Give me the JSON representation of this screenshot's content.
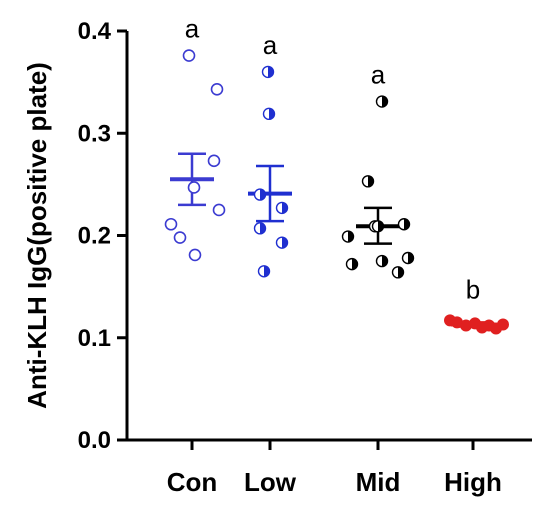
{
  "chart_data": {
    "type": "scatter",
    "ylabel": "Anti-KLH IgG(positive plate)",
    "ylim": [
      0.0,
      0.4
    ],
    "yticks": [
      0.0,
      0.1,
      0.2,
      0.3,
      0.4
    ],
    "ytick_labels": [
      "0.0",
      "0.1",
      "0.2",
      "0.3",
      "0.4"
    ],
    "categories": [
      "Con",
      "Low",
      "Mid",
      "High"
    ],
    "grid": false,
    "groups": [
      {
        "category": "Con",
        "marker": "open-circle",
        "color": "#3b3bd1",
        "mean": 0.255,
        "error_upper": 0.28,
        "error_lower": 0.23,
        "significance": "a",
        "points": [
          0.376,
          0.343,
          0.273,
          0.247,
          0.211,
          0.225,
          0.198,
          0.181
        ]
      },
      {
        "category": "Low",
        "marker": "half-filled-circle",
        "color": "#1f2fd0",
        "mean": 0.241,
        "error_upper": 0.268,
        "error_lower": 0.214,
        "significance": "a",
        "points": [
          0.36,
          0.319,
          0.24,
          0.227,
          0.207,
          0.193,
          0.165
        ]
      },
      {
        "category": "Mid",
        "marker": "half-filled-circle",
        "color": "#000000",
        "mean": 0.209,
        "error_upper": 0.227,
        "error_lower": 0.192,
        "significance": "a",
        "points": [
          0.331,
          0.253,
          0.209,
          0.211,
          0.209,
          0.199,
          0.178,
          0.164,
          0.175,
          0.172
        ]
      },
      {
        "category": "High",
        "marker": "filled-circle",
        "color": "#e02020",
        "mean": 0.113,
        "error_upper": 0.115,
        "error_lower": 0.111,
        "significance": "b",
        "points": [
          0.117,
          0.115,
          0.112,
          0.114,
          0.11,
          0.112,
          0.109,
          0.113
        ]
      }
    ]
  }
}
